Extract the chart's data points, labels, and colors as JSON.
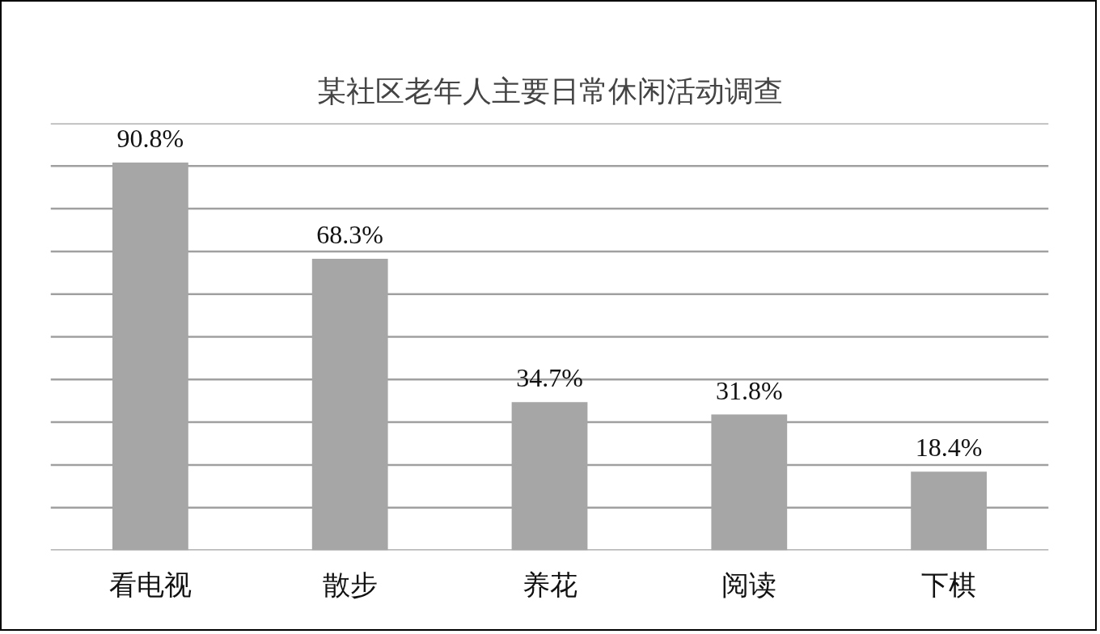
{
  "chart_data": {
    "type": "bar",
    "title": "某社区老年人主要日常休闲活动调查",
    "categories": [
      "看电视",
      "散步",
      "养花",
      "阅读",
      "下棋"
    ],
    "values": [
      90.8,
      68.3,
      34.7,
      31.8,
      18.4
    ],
    "value_labels": [
      "90.8%",
      "68.3%",
      "34.7%",
      "31.8%",
      "18.4%"
    ],
    "color": "#a6a6a6",
    "ylim": [
      0,
      100
    ],
    "yticks": [
      {
        "value": 0,
        "label": null
      },
      {
        "value": 10,
        "label": null
      },
      {
        "value": 20,
        "label": null
      },
      {
        "value": 30,
        "label": null
      },
      {
        "value": 40,
        "label": null
      },
      {
        "value": 50,
        "label": null
      },
      {
        "value": 60,
        "label": null
      },
      {
        "value": 70,
        "label": null
      },
      {
        "value": 80,
        "label": null
      },
      {
        "value": 90,
        "label": null
      },
      {
        "value": 100,
        "label": null
      }
    ],
    "grid": "y",
    "tick_labels": "x"
  }
}
